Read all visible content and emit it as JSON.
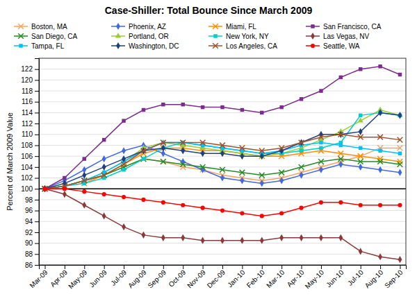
{
  "chart_data": {
    "type": "line",
    "title": "Case-Shiller: Total Bounce Since March 2009",
    "ylabel": "Percent of March 2009 Value",
    "categories": [
      "Mar-09",
      "Apr-09",
      "May-09",
      "Jun-09",
      "Jul-09",
      "Aug-09",
      "Sep-09",
      "Oct-09",
      "Nov-09",
      "Dec-09",
      "Jan-10",
      "Feb-10",
      "Mar-10",
      "Apr-10",
      "May-10",
      "Jun-10",
      "Jul-10",
      "Aug-10",
      "Sep-10"
    ],
    "series": [
      {
        "name": "Boston, MA",
        "color": "#F4A460",
        "marker": "x",
        "values": [
          100,
          100.5,
          101.5,
          102.5,
          104.0,
          105.5,
          105.0,
          104.0,
          103.5,
          102.5,
          102.0,
          101.5,
          102.0,
          103.0,
          104.0,
          105.0,
          106.0,
          107.5,
          107.5
        ]
      },
      {
        "name": "Phoenix, AZ",
        "color": "#4169E1",
        "marker": "diamond",
        "values": [
          100,
          101.5,
          103.5,
          105.5,
          107.0,
          108.0,
          106.5,
          105.0,
          103.5,
          102.0,
          101.5,
          101.0,
          101.5,
          102.5,
          103.5,
          104.5,
          104.0,
          103.5,
          103.0
        ]
      },
      {
        "name": "Miami, FL",
        "color": "#FF8C00",
        "marker": "x",
        "values": [
          100,
          100.5,
          101.0,
          102.5,
          104.5,
          106.5,
          107.5,
          107.5,
          107.0,
          107.0,
          106.5,
          106.0,
          106.0,
          106.5,
          107.0,
          106.5,
          106.0,
          105.5,
          105.0
        ]
      },
      {
        "name": "San Francisco, CA",
        "color": "#7B2D8B",
        "marker": "square",
        "values": [
          100,
          102.0,
          105.5,
          109.0,
          112.5,
          114.5,
          115.5,
          115.5,
          115.0,
          115.0,
          114.5,
          114.0,
          115.0,
          116.5,
          118.0,
          120.5,
          122.0,
          122.5,
          121.0
        ]
      },
      {
        "name": "San Diego, CA",
        "color": "#228B22",
        "marker": "x",
        "values": [
          100,
          100.5,
          101.5,
          102.5,
          104.0,
          105.5,
          105.0,
          104.5,
          104.0,
          103.5,
          103.0,
          102.5,
          103.0,
          104.0,
          105.0,
          105.5,
          105.0,
          105.0,
          104.5
        ]
      },
      {
        "name": "Portland, OR",
        "color": "#9ACD32",
        "marker": "triangle",
        "values": [
          100,
          100.5,
          101.5,
          103.0,
          105.0,
          107.5,
          108.5,
          108.0,
          107.5,
          107.0,
          106.5,
          106.0,
          106.5,
          107.5,
          109.0,
          110.5,
          112.5,
          114.5,
          113.5
        ]
      },
      {
        "name": "New York, NY",
        "color": "#00CED1",
        "marker": "square",
        "values": [
          100,
          100.5,
          101.0,
          102.0,
          103.5,
          105.5,
          107.5,
          108.5,
          108.0,
          107.5,
          107.0,
          106.5,
          106.5,
          107.0,
          107.5,
          108.5,
          113.5,
          114.0,
          113.5
        ]
      },
      {
        "name": "Las Vegas, NV",
        "color": "#8B3A3A",
        "marker": "diamond",
        "values": [
          100,
          99.0,
          97.0,
          95.0,
          93.0,
          91.5,
          91.0,
          91.0,
          90.5,
          90.5,
          90.5,
          90.5,
          91.0,
          91.0,
          91.0,
          91.0,
          88.5,
          87.5,
          87.0
        ]
      },
      {
        "name": "Tampa, FL",
        "color": "#00BFFF",
        "marker": "square",
        "values": [
          100,
          100.5,
          101.5,
          103.0,
          105.0,
          107.0,
          108.5,
          108.5,
          108.0,
          107.5,
          107.0,
          106.5,
          107.0,
          108.0,
          108.5,
          108.0,
          107.5,
          107.0,
          106.5
        ]
      },
      {
        "name": "Washington, DC",
        "color": "#1E4080",
        "marker": "diamond",
        "values": [
          100,
          101.0,
          102.5,
          104.0,
          105.5,
          107.0,
          107.5,
          107.0,
          106.5,
          106.5,
          106.0,
          106.0,
          107.0,
          108.5,
          110.0,
          110.0,
          110.5,
          114.0,
          113.5
        ]
      },
      {
        "name": "Los Angeles, CA",
        "color": "#A0522D",
        "marker": "x",
        "values": [
          100,
          100.5,
          101.5,
          102.5,
          104.5,
          107.0,
          108.5,
          108.5,
          108.5,
          108.0,
          107.5,
          107.0,
          107.5,
          108.5,
          109.5,
          110.0,
          109.5,
          109.5,
          109.0
        ]
      },
      {
        "name": "Seattle, WA",
        "color": "#FF0000",
        "marker": "circle",
        "values": [
          100,
          100.0,
          99.5,
          99.0,
          98.5,
          98.0,
          97.5,
          97.0,
          96.5,
          96.0,
          95.5,
          95.0,
          95.5,
          96.5,
          97.5,
          97.5,
          97.0,
          97.0,
          97.0
        ]
      }
    ],
    "ylim": [
      86,
      124
    ],
    "yticks": [
      86,
      88,
      90,
      92,
      94,
      96,
      98,
      100,
      102,
      104,
      106,
      108,
      110,
      112,
      114,
      116,
      118,
      120,
      122
    ],
    "grid": true,
    "legend": "top",
    "hline": 100
  }
}
